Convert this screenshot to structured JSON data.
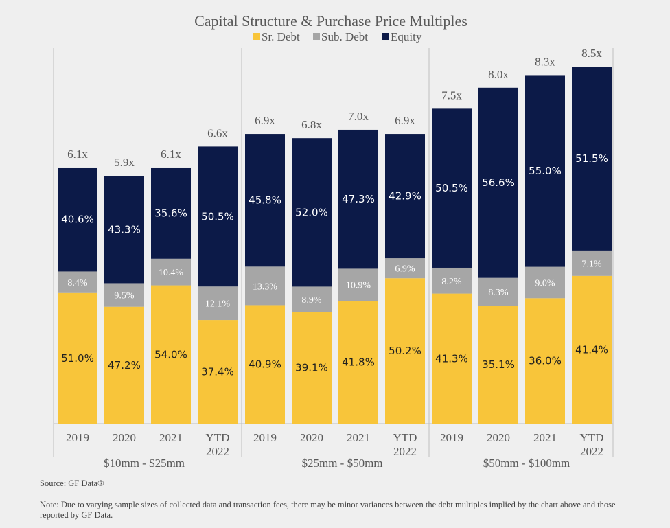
{
  "chart_data": {
    "type": "bar",
    "stacked": true,
    "title": "Capital Structure & Purchase Price Multiples",
    "legend_position": "top",
    "colors": {
      "Sr. Debt": "#f8c53a",
      "Sub. Debt": "#a6a6a6",
      "Equity": "#0c1a48"
    },
    "groups": [
      {
        "label": "$10mm - $25mm",
        "categories": [
          "2019",
          "2020",
          "2021",
          "YTD 2022"
        ],
        "multiples": [
          "6.1x",
          "5.9x",
          "6.1x",
          "6.6x"
        ],
        "multiple_values": [
          6.1,
          5.9,
          6.1,
          6.6
        ],
        "series": [
          {
            "name": "Sr. Debt",
            "values": [
              51.0,
              47.2,
              54.0,
              37.4
            ],
            "labels": [
              "51.0%",
              "47.2%",
              "54.0%",
              "37.4%"
            ]
          },
          {
            "name": "Sub. Debt",
            "values": [
              8.4,
              9.5,
              10.4,
              12.1
            ],
            "labels": [
              "8.4%",
              "9.5%",
              "10.4%",
              "12.1%"
            ]
          },
          {
            "name": "Equity",
            "values": [
              40.6,
              43.3,
              35.6,
              50.5
            ],
            "labels": [
              "40.6%",
              "43.3%",
              "35.6%",
              "50.5%"
            ]
          }
        ]
      },
      {
        "label": "$25mm - $50mm",
        "categories": [
          "2019",
          "2020",
          "2021",
          "YTD 2022"
        ],
        "multiples": [
          "6.9x",
          "6.8x",
          "7.0x",
          "6.9x"
        ],
        "multiple_values": [
          6.9,
          6.8,
          7.0,
          6.9
        ],
        "series": [
          {
            "name": "Sr. Debt",
            "values": [
              40.9,
              39.1,
              41.8,
              50.2
            ],
            "labels": [
              "40.9%",
              "39.1%",
              "41.8%",
              "50.2%"
            ]
          },
          {
            "name": "Sub. Debt",
            "values": [
              13.3,
              8.9,
              10.9,
              6.9
            ],
            "labels": [
              "13.3%",
              "8.9%",
              "10.9%",
              "6.9%"
            ]
          },
          {
            "name": "Equity",
            "values": [
              45.8,
              52.0,
              47.3,
              42.9
            ],
            "labels": [
              "45.8%",
              "52.0%",
              "47.3%",
              "42.9%"
            ]
          }
        ]
      },
      {
        "label": "$50mm - $100mm",
        "categories": [
          "2019",
          "2020",
          "2021",
          "YTD 2022"
        ],
        "multiples": [
          "7.5x",
          "8.0x",
          "8.3x",
          "8.5x"
        ],
        "multiple_values": [
          7.5,
          8.0,
          8.3,
          8.5
        ],
        "series": [
          {
            "name": "Sr. Debt",
            "values": [
              41.3,
              35.1,
              36.0,
              41.4
            ],
            "labels": [
              "41.3%",
              "35.1%",
              "36.0%",
              "41.4%"
            ]
          },
          {
            "name": "Sub. Debt",
            "values": [
              8.2,
              8.3,
              9.0,
              7.1
            ],
            "labels": [
              "8.2%",
              "8.3%",
              "9.0%",
              "7.1%"
            ]
          },
          {
            "name": "Equity",
            "values": [
              50.5,
              56.6,
              55.0,
              51.5
            ],
            "labels": [
              "50.5%",
              "56.6%",
              "55.0%",
              "51.5%"
            ]
          }
        ]
      }
    ]
  },
  "source": "Source: GF Data®",
  "footnote": "Note: Due to varying sample sizes of collected data and transaction fees, there may be minor variances between the debt multiples implied by the chart above and those reported by GF Data."
}
